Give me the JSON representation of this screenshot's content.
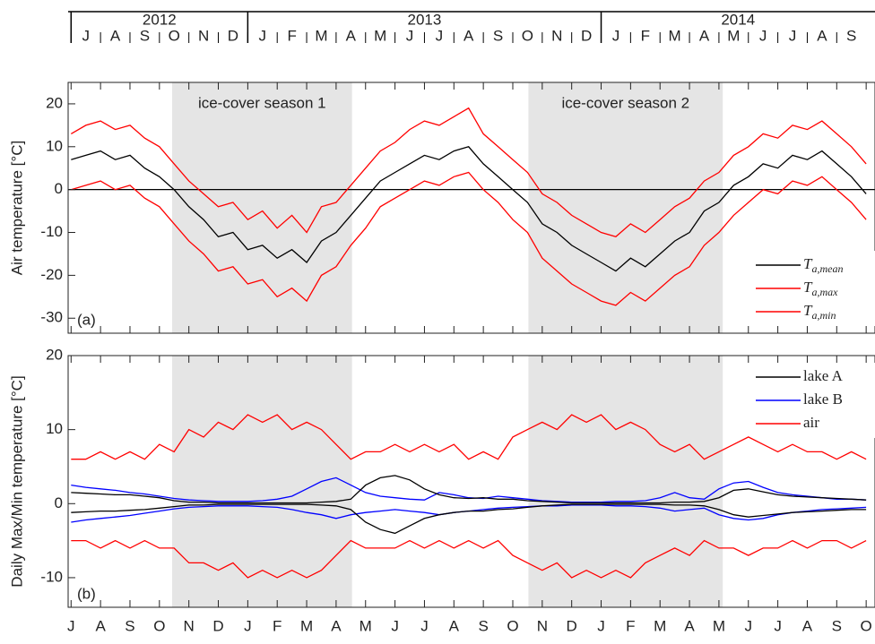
{
  "timeline": {
    "years": [
      {
        "label": "2012",
        "start": 6,
        "end": 12
      },
      {
        "label": "2013",
        "start": 12,
        "end": 24
      },
      {
        "label": "2014",
        "start": 24,
        "end": 33.3
      }
    ],
    "months": [
      {
        "value": 6,
        "label": "J"
      },
      {
        "value": 7,
        "label": "A"
      },
      {
        "value": 8,
        "label": "S"
      },
      {
        "value": 9,
        "label": "O"
      },
      {
        "value": 10,
        "label": "N"
      },
      {
        "value": 11,
        "label": "D"
      },
      {
        "value": 12,
        "label": "J"
      },
      {
        "value": 13,
        "label": "F"
      },
      {
        "value": 14,
        "label": "M"
      },
      {
        "value": 15,
        "label": "A"
      },
      {
        "value": 16,
        "label": "M"
      },
      {
        "value": 17,
        "label": "J"
      },
      {
        "value": 18,
        "label": "J"
      },
      {
        "value": 19,
        "label": "A"
      },
      {
        "value": 20,
        "label": "S"
      },
      {
        "value": 21,
        "label": "O"
      },
      {
        "value": 22,
        "label": "N"
      },
      {
        "value": 23,
        "label": "D"
      },
      {
        "value": 24,
        "label": "J"
      },
      {
        "value": 25,
        "label": "F"
      },
      {
        "value": 26,
        "label": "M"
      },
      {
        "value": 27,
        "label": "A"
      },
      {
        "value": 28,
        "label": "M"
      },
      {
        "value": 29,
        "label": "J"
      },
      {
        "value": 30,
        "label": "J"
      },
      {
        "value": 31,
        "label": "A"
      },
      {
        "value": 32,
        "label": "S"
      }
    ]
  },
  "chart_data": [
    {
      "type": "line",
      "panel_label": "(a)",
      "y_label": "Air temperature [°C]",
      "xlim": [
        5.9,
        33.3
      ],
      "ylim": [
        -33.5,
        25
      ],
      "yticks": [
        -30,
        -20,
        -10,
        0,
        10,
        20
      ],
      "zero_line": true,
      "legend": "lower right",
      "shading": [
        {
          "start": 9.43,
          "end": 15.54,
          "label": "ice-cover season 1"
        },
        {
          "start": 21.53,
          "end": 28.13,
          "label": "ice-cover season 2"
        }
      ],
      "x": [
        6,
        6.5,
        7,
        7.5,
        8,
        8.5,
        9,
        9.5,
        10,
        10.5,
        11,
        11.5,
        12,
        12.5,
        13,
        13.5,
        14,
        14.5,
        15,
        15.5,
        16,
        16.5,
        17,
        17.5,
        18,
        18.5,
        19,
        19.5,
        20,
        20.5,
        21,
        21.5,
        22,
        22.5,
        23,
        23.5,
        24,
        24.5,
        25,
        25.5,
        26,
        26.5,
        27,
        27.5,
        28,
        28.5,
        29,
        29.5,
        30,
        30.5,
        31,
        31.5,
        32,
        32.5,
        33
      ],
      "series": [
        {
          "name": "T",
          "subscript": "a,mean",
          "color": "#000000",
          "values": [
            7,
            8,
            9,
            7,
            8,
            5,
            3,
            0,
            -4,
            -7,
            -11,
            -10,
            -14,
            -13,
            -16,
            -14,
            -17,
            -12,
            -10,
            -6,
            -2,
            2,
            4,
            6,
            8,
            7,
            9,
            10,
            6,
            3,
            0,
            -3,
            -8,
            -10,
            -13,
            -15,
            -17,
            -19,
            -16,
            -18,
            -15,
            -12,
            -10,
            -5,
            -3,
            1,
            3,
            6,
            5,
            8,
            7,
            9,
            6,
            3,
            -1
          ]
        },
        {
          "name": "T",
          "subscript": "a,max",
          "color": "#ff0000",
          "values": [
            13,
            15,
            16,
            14,
            15,
            12,
            10,
            6,
            2,
            -1,
            -4,
            -3,
            -7,
            -5,
            -9,
            -6,
            -10,
            -4,
            -3,
            1,
            5,
            9,
            11,
            14,
            16,
            15,
            17,
            19,
            13,
            10,
            7,
            4,
            -1,
            -3,
            -6,
            -8,
            -10,
            -11,
            -8,
            -10,
            -7,
            -4,
            -2,
            2,
            4,
            8,
            10,
            13,
            12,
            15,
            14,
            16,
            13,
            10,
            6
          ]
        },
        {
          "name": "T",
          "subscript": "a,min",
          "color": "#ff0000",
          "values": [
            0,
            1,
            2,
            0,
            1,
            -2,
            -4,
            -8,
            -12,
            -15,
            -19,
            -18,
            -22,
            -21,
            -25,
            -23,
            -26,
            -20,
            -18,
            -13,
            -9,
            -4,
            -2,
            0,
            2,
            1,
            3,
            4,
            0,
            -3,
            -7,
            -10,
            -16,
            -19,
            -22,
            -24,
            -26,
            -27,
            -24,
            -26,
            -23,
            -20,
            -18,
            -13,
            -10,
            -6,
            -3,
            0,
            -1,
            2,
            1,
            3,
            0,
            -3,
            -7
          ]
        }
      ]
    },
    {
      "type": "band_lines",
      "panel_label": "(b)",
      "y_label": "Daily Max/Min temperature [°C]",
      "xlim": [
        5.9,
        33.3
      ],
      "ylim": [
        -14,
        20
      ],
      "yticks": [
        -10,
        0,
        10,
        20
      ],
      "legend": "upper right",
      "xticks": [
        {
          "value": 6,
          "label": "J"
        },
        {
          "value": 7,
          "label": "A"
        },
        {
          "value": 8,
          "label": "S"
        },
        {
          "value": 9,
          "label": "O"
        },
        {
          "value": 10,
          "label": "N"
        },
        {
          "value": 11,
          "label": "D"
        },
        {
          "value": 12,
          "label": "J"
        },
        {
          "value": 13,
          "label": "F"
        },
        {
          "value": 14,
          "label": "M"
        },
        {
          "value": 15,
          "label": "A"
        },
        {
          "value": 16,
          "label": "M"
        },
        {
          "value": 17,
          "label": "J"
        },
        {
          "value": 18,
          "label": "J"
        },
        {
          "value": 19,
          "label": "A"
        },
        {
          "value": 20,
          "label": "S"
        },
        {
          "value": 21,
          "label": "O"
        },
        {
          "value": 22,
          "label": "N"
        },
        {
          "value": 23,
          "label": "D"
        },
        {
          "value": 24,
          "label": "J"
        },
        {
          "value": 25,
          "label": "F"
        },
        {
          "value": 26,
          "label": "M"
        },
        {
          "value": 27,
          "label": "A"
        },
        {
          "value": 28,
          "label": "M"
        },
        {
          "value": 29,
          "label": "J"
        },
        {
          "value": 30,
          "label": "J"
        },
        {
          "value": 31,
          "label": "A"
        },
        {
          "value": 32,
          "label": "S"
        },
        {
          "value": 33,
          "label": "O"
        }
      ],
      "x": [
        6,
        6.5,
        7,
        7.5,
        8,
        8.5,
        9,
        9.5,
        10,
        10.5,
        11,
        11.5,
        12,
        12.5,
        13,
        13.5,
        14,
        14.5,
        15,
        15.5,
        16,
        16.5,
        17,
        17.5,
        18,
        18.5,
        19,
        19.5,
        20,
        20.5,
        21,
        21.5,
        22,
        22.5,
        23,
        23.5,
        24,
        24.5,
        25,
        25.5,
        26,
        26.5,
        27,
        27.5,
        28,
        28.5,
        29,
        29.5,
        30,
        30.5,
        31,
        31.5,
        32,
        32.5,
        33
      ],
      "series": [
        {
          "name": "lake A",
          "color": "#000000",
          "max": [
            1.5,
            1.4,
            1.3,
            1.2,
            1.2,
            1.0,
            0.8,
            0.4,
            0.2,
            0.2,
            0.1,
            0.1,
            0.1,
            0.1,
            0.1,
            0.1,
            0.1,
            0.2,
            0.3,
            0.6,
            2.5,
            3.5,
            3.8,
            3.2,
            2.0,
            1.2,
            0.8,
            0.7,
            0.8,
            0.6,
            0.6,
            0.4,
            0.3,
            0.2,
            0.1,
            0.1,
            0.1,
            0.1,
            0.1,
            0.1,
            0.1,
            0.2,
            0.2,
            0.3,
            0.8,
            1.8,
            2.0,
            1.6,
            1.2,
            1.0,
            0.9,
            0.8,
            0.7,
            0.6,
            0.5
          ],
          "min": [
            -1.2,
            -1.1,
            -1.0,
            -1.0,
            -0.9,
            -0.8,
            -0.6,
            -0.4,
            -0.2,
            -0.2,
            -0.1,
            -0.1,
            -0.1,
            -0.1,
            -0.1,
            -0.1,
            -0.1,
            -0.2,
            -0.3,
            -0.8,
            -2.5,
            -3.5,
            -4.0,
            -3.0,
            -2.0,
            -1.5,
            -1.2,
            -1.0,
            -1.0,
            -0.8,
            -0.7,
            -0.5,
            -0.3,
            -0.2,
            -0.1,
            -0.1,
            -0.1,
            -0.1,
            -0.1,
            -0.1,
            -0.1,
            -0.2,
            -0.2,
            -0.3,
            -0.8,
            -1.5,
            -1.8,
            -1.6,
            -1.4,
            -1.2,
            -1.1,
            -1.0,
            -0.9,
            -0.8,
            -0.8
          ]
        },
        {
          "name": "lake B",
          "color": "#0000ff",
          "max": [
            2.5,
            2.2,
            2.0,
            1.8,
            1.5,
            1.3,
            1.0,
            0.7,
            0.5,
            0.4,
            0.3,
            0.3,
            0.3,
            0.4,
            0.6,
            1.0,
            2.0,
            3.0,
            3.5,
            2.5,
            1.5,
            1.0,
            0.8,
            0.6,
            0.5,
            1.5,
            1.2,
            0.8,
            0.7,
            1.0,
            0.8,
            0.6,
            0.4,
            0.3,
            0.2,
            0.2,
            0.2,
            0.3,
            0.3,
            0.4,
            0.8,
            1.5,
            0.8,
            0.6,
            2.0,
            2.8,
            3.0,
            2.2,
            1.5,
            1.2,
            1.0,
            0.8,
            0.6,
            0.6,
            0.5
          ],
          "min": [
            -2.5,
            -2.2,
            -2.0,
            -1.8,
            -1.6,
            -1.3,
            -1.0,
            -0.7,
            -0.5,
            -0.4,
            -0.3,
            -0.3,
            -0.3,
            -0.4,
            -0.5,
            -0.8,
            -1.2,
            -1.5,
            -2.0,
            -1.5,
            -1.2,
            -1.0,
            -0.8,
            -1.0,
            -1.2,
            -1.5,
            -1.2,
            -1.0,
            -0.8,
            -0.6,
            -0.5,
            -0.4,
            -0.3,
            -0.3,
            -0.2,
            -0.2,
            -0.2,
            -0.3,
            -0.3,
            -0.4,
            -0.6,
            -1.0,
            -0.8,
            -0.6,
            -1.5,
            -2.0,
            -2.2,
            -2.0,
            -1.5,
            -1.2,
            -1.0,
            -0.8,
            -0.7,
            -0.6,
            -0.5
          ]
        },
        {
          "name": "air",
          "color": "#ff0000",
          "max": [
            6,
            6,
            7,
            6,
            7,
            6,
            8,
            7,
            10,
            9,
            11,
            10,
            12,
            11,
            12,
            10,
            11,
            10,
            8,
            6,
            7,
            7,
            8,
            7,
            8,
            7,
            8,
            6,
            7,
            6,
            9,
            10,
            11,
            10,
            12,
            11,
            12,
            10,
            11,
            10,
            8,
            7,
            8,
            6,
            7,
            8,
            9,
            8,
            7,
            8,
            7,
            7,
            6,
            7,
            6
          ],
          "min": [
            -5,
            -5,
            -6,
            -5,
            -6,
            -5,
            -6,
            -6,
            -8,
            -8,
            -9,
            -8,
            -10,
            -9,
            -10,
            -9,
            -10,
            -9,
            -7,
            -5,
            -6,
            -6,
            -6,
            -5,
            -6,
            -5,
            -6,
            -5,
            -6,
            -5,
            -7,
            -8,
            -9,
            -8,
            -10,
            -9,
            -10,
            -9,
            -10,
            -8,
            -7,
            -6,
            -7,
            -5,
            -6,
            -6,
            -7,
            -6,
            -6,
            -5,
            -6,
            -5,
            -5,
            -6,
            -5
          ]
        }
      ]
    }
  ]
}
